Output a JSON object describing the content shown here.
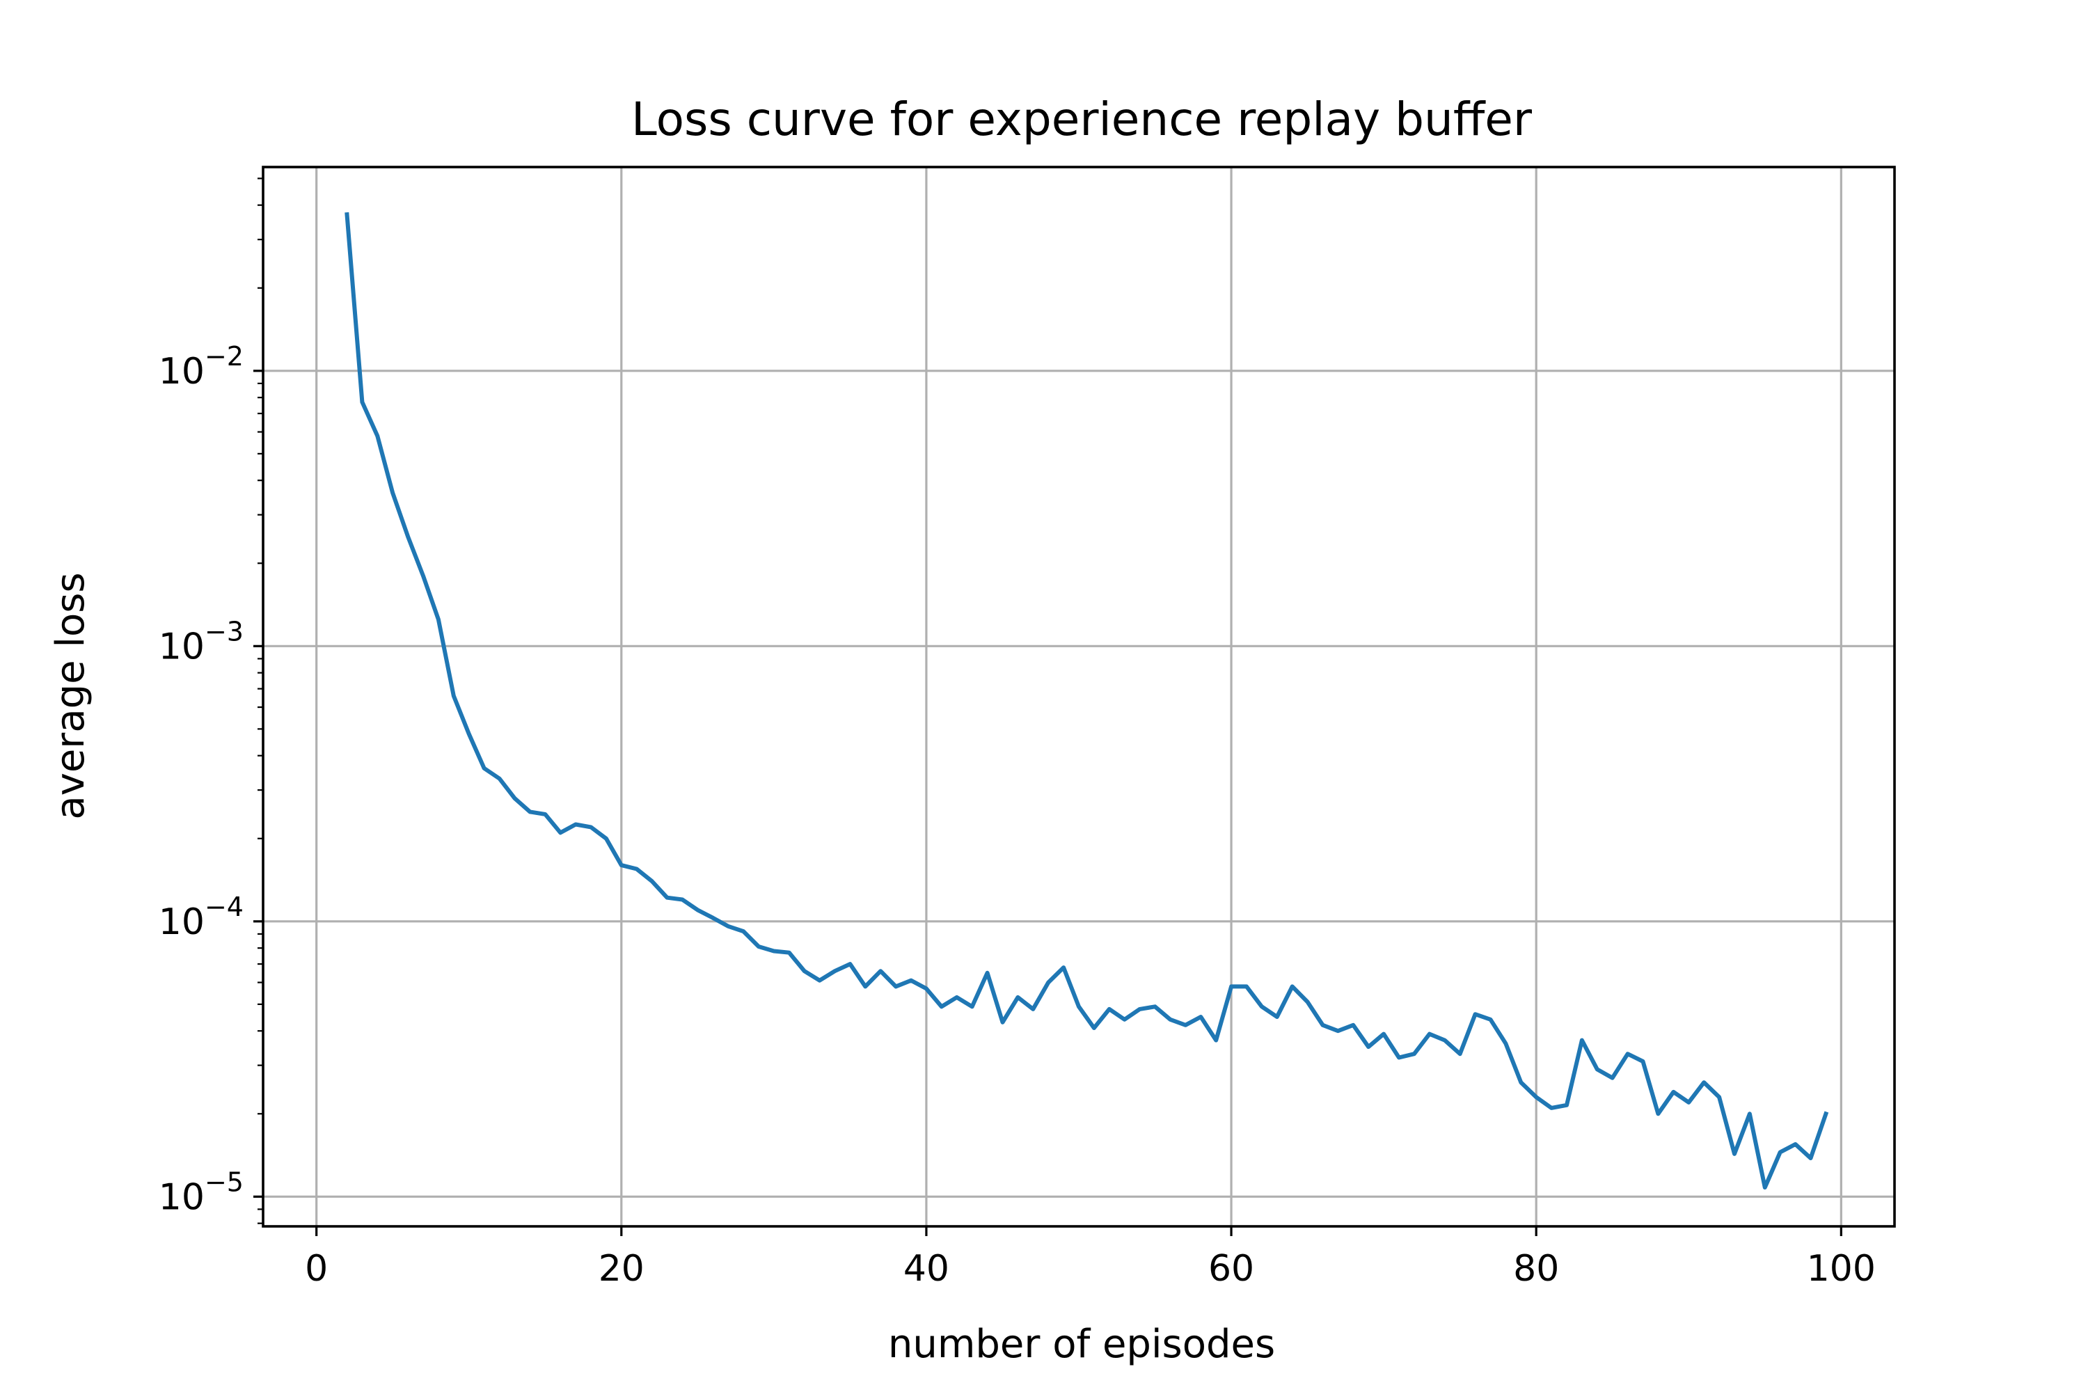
{
  "chart_data": {
    "type": "line",
    "title": "Loss curve for experience replay buffer",
    "xlabel": "number of episodes",
    "ylabel": "average loss",
    "yscale": "log",
    "xlim": [
      -3.5,
      103.5
    ],
    "ylim": [
      7.8e-06,
      0.055
    ],
    "grid": true,
    "xticks": [
      0,
      20,
      40,
      60,
      80,
      100
    ],
    "xtick_labels": [
      "0",
      "20",
      "40",
      "60",
      "80",
      "100"
    ],
    "yticks": [
      0.01,
      0.001,
      0.0001,
      1e-05
    ],
    "ytick_labels": [
      {
        "base": "10",
        "exp": "−2"
      },
      {
        "base": "10",
        "exp": "−3"
      },
      {
        "base": "10",
        "exp": "−4"
      },
      {
        "base": "10",
        "exp": "−5"
      }
    ],
    "series": [
      {
        "color": "#1f77b4",
        "x": [
          2,
          3,
          4,
          5,
          6,
          7,
          8,
          9,
          10,
          11,
          12,
          13,
          14,
          15,
          16,
          17,
          18,
          19,
          20,
          21,
          22,
          23,
          24,
          25,
          26,
          27,
          28,
          29,
          30,
          31,
          32,
          33,
          34,
          35,
          36,
          37,
          38,
          39,
          40,
          41,
          42,
          43,
          44,
          45,
          46,
          47,
          48,
          49,
          50,
          51,
          52,
          53,
          54,
          55,
          56,
          57,
          58,
          59,
          60,
          61,
          62,
          63,
          64,
          65,
          66,
          67,
          68,
          69,
          70,
          71,
          72,
          73,
          74,
          75,
          76,
          77,
          78,
          79,
          80,
          81,
          82,
          83,
          84,
          85,
          86,
          87,
          88,
          89,
          90,
          91,
          92,
          93,
          94,
          95,
          96,
          97,
          98,
          99
        ],
        "values": [
          0.037,
          0.0077,
          0.0058,
          0.0036,
          0.0025,
          0.0018,
          0.00125,
          0.00066,
          0.00048,
          0.00036,
          0.00033,
          0.00028,
          0.00025,
          0.000245,
          0.00021,
          0.000225,
          0.00022,
          0.0002,
          0.00016,
          0.000155,
          0.00014,
          0.000122,
          0.00012,
          0.00011,
          0.000103,
          9.6e-05,
          9.2e-05,
          8.1e-05,
          7.8e-05,
          7.7e-05,
          6.6e-05,
          6.1e-05,
          6.6e-05,
          7e-05,
          5.8e-05,
          6.6e-05,
          5.8e-05,
          6.1e-05,
          5.7e-05,
          4.9e-05,
          5.3e-05,
          4.9e-05,
          6.5e-05,
          4.3e-05,
          5.3e-05,
          4.8e-05,
          6e-05,
          6.8e-05,
          4.9e-05,
          4.1e-05,
          4.8e-05,
          4.4e-05,
          4.8e-05,
          4.9e-05,
          4.4e-05,
          4.2e-05,
          4.5e-05,
          3.7e-05,
          5.8e-05,
          5.8e-05,
          4.9e-05,
          4.5e-05,
          5.8e-05,
          5.1e-05,
          4.2e-05,
          4e-05,
          4.2e-05,
          3.5e-05,
          3.9e-05,
          3.2e-05,
          3.3e-05,
          3.9e-05,
          3.7e-05,
          3.3e-05,
          4.6e-05,
          4.4e-05,
          3.6e-05,
          2.6e-05,
          2.3e-05,
          2.1e-05,
          2.15e-05,
          3.7e-05,
          2.9e-05,
          2.7e-05,
          3.3e-05,
          3.1e-05,
          2e-05,
          2.4e-05,
          2.2e-05,
          2.6e-05,
          2.3e-05,
          1.43e-05,
          2e-05,
          1.08e-05,
          1.45e-05,
          1.55e-05,
          1.38e-05,
          2e-05
        ]
      }
    ]
  }
}
